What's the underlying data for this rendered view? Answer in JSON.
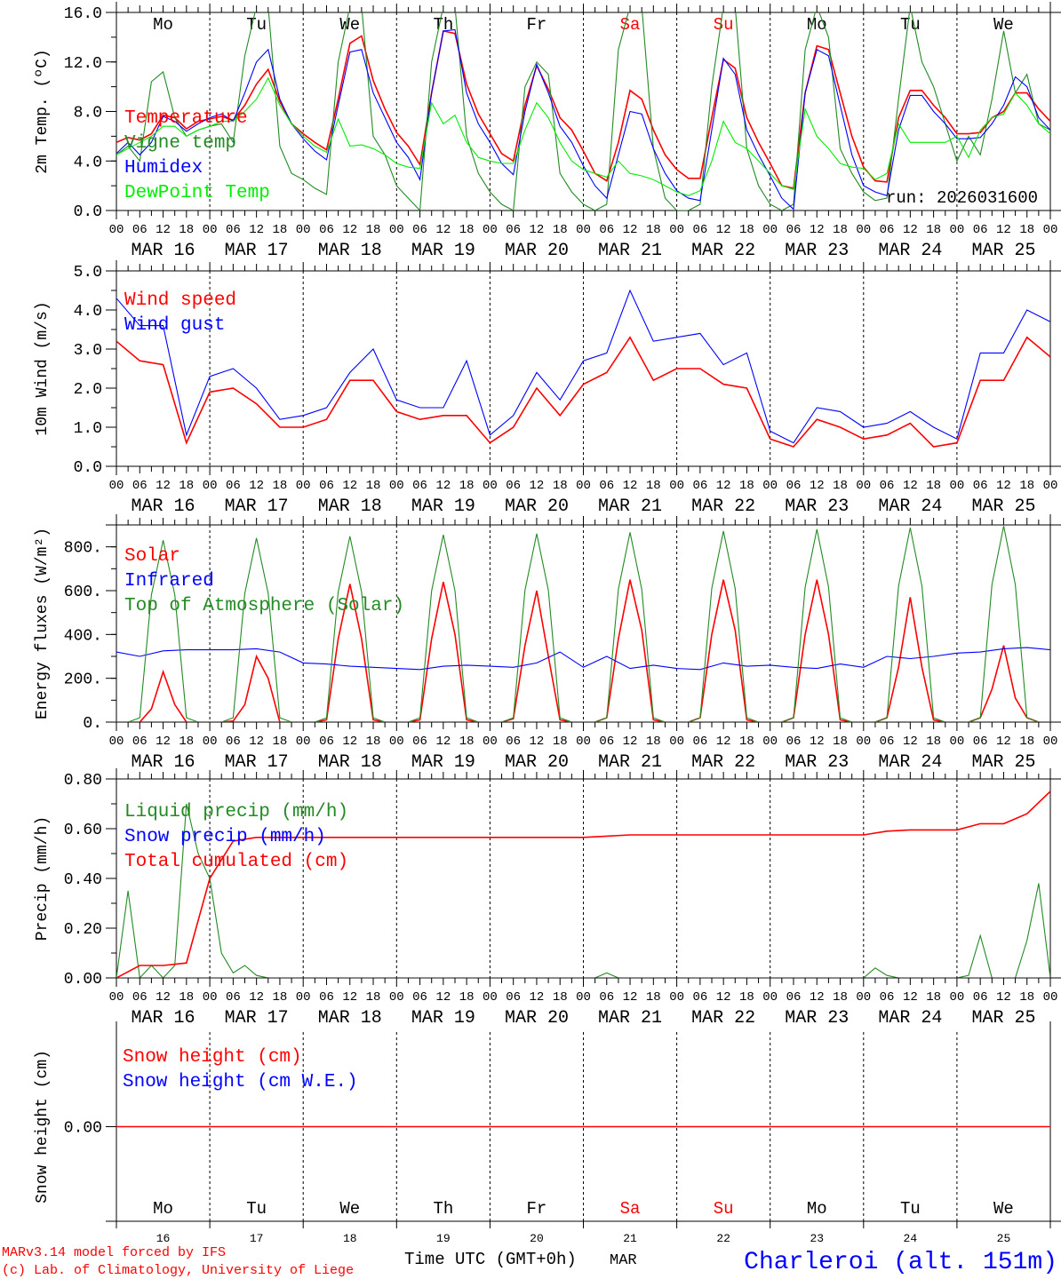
{
  "chart_data": [
    {
      "type": "line",
      "ylabel": "2m Temp. (ºC)",
      "ylim": [
        0,
        16
      ],
      "yticks": [
        0,
        4,
        8,
        12,
        16
      ],
      "ytick_labels": [
        "0.0",
        "4.0",
        "8.0",
        "12.0",
        "16.0"
      ],
      "legend_placement": "left",
      "annotation": "run: 2026031600",
      "series": [
        {
          "name": "Temperature",
          "color": "#ff0000",
          "step_hours": 3,
          "values": [
            5.5,
            5.9,
            5.7,
            6.2,
            7.7,
            7.5,
            6.6,
            7.2,
            7.4,
            7.6,
            7.3,
            8.5,
            10.2,
            11.4,
            8.8,
            7.0,
            6.2,
            5.5,
            4.9,
            9.0,
            13.5,
            14.1,
            10.5,
            8.2,
            6.3,
            5.2,
            3.7,
            9.5,
            14.5,
            14.3,
            10.2,
            7.8,
            6.2,
            4.6,
            4.0,
            8.5,
            11.7,
            9.8,
            7.5,
            6.5,
            4.8,
            3.0,
            2.4,
            5.5,
            9.7,
            9.0,
            6.5,
            4.5,
            3.3,
            2.6,
            2.6,
            7.5,
            12.2,
            11.5,
            7.5,
            5.5,
            3.8,
            2.0,
            1.8,
            9.5,
            13.3,
            13.0,
            9.5,
            6.0,
            3.5,
            2.4,
            2.3,
            7.5,
            9.7,
            9.7,
            8.5,
            7.5,
            6.2,
            6.2,
            6.3,
            7.5,
            8.0,
            9.5,
            9.5,
            8.2,
            7.2
          ]
        },
        {
          "name": "Vigne temp",
          "color": "#228b22",
          "step_hours": 3,
          "values": [
            4.5,
            5.2,
            4.0,
            10.4,
            11.2,
            7.5,
            6.0,
            6.5,
            6.8,
            7.0,
            5.5,
            12.5,
            16.5,
            16.5,
            5.2,
            3.0,
            2.5,
            1.8,
            1.3,
            12,
            16.5,
            16.5,
            6,
            4.5,
            2.0,
            1.0,
            0.0,
            12,
            16.5,
            16.5,
            6,
            3.0,
            1.5,
            0.5,
            0.0,
            10,
            12,
            11,
            3,
            1.5,
            0.5,
            0,
            0.5,
            13,
            16.5,
            16.5,
            5,
            1.0,
            0,
            0,
            0.5,
            10,
            16.5,
            16.5,
            5,
            2.0,
            0.5,
            0,
            0.5,
            13,
            16.5,
            14,
            5,
            3.0,
            1.5,
            0.8,
            1.0,
            9,
            16.5,
            12,
            10,
            7.0,
            4.0,
            6.0,
            4.5,
            9,
            14.5,
            9.5,
            11,
            7.0,
            6.5
          ]
        },
        {
          "name": "Humidex",
          "color": "#0000ff",
          "step_hours": 3,
          "values": [
            4.6,
            5.5,
            4.5,
            5.5,
            7.6,
            7.2,
            6.4,
            7.0,
            7.5,
            7.8,
            7.2,
            9.5,
            12.0,
            13.0,
            9.0,
            7.0,
            5.8,
            4.8,
            4.1,
            8.5,
            12.8,
            13.0,
            9.5,
            7.5,
            5.5,
            4.3,
            2.5,
            9.5,
            14.5,
            14.6,
            9.5,
            7.0,
            5.5,
            3.8,
            2.9,
            8.0,
            11.8,
            9.5,
            6.8,
            5.5,
            3.6,
            2.0,
            1.0,
            4.5,
            8.0,
            7.8,
            5.0,
            3.0,
            1.6,
            1.0,
            0.8,
            6.5,
            12.3,
            11.0,
            6.5,
            4.5,
            2.8,
            1.0,
            0.1,
            9.5,
            13.0,
            12.5,
            8.5,
            4.5,
            2.0,
            1.5,
            1.2,
            6.5,
            9.3,
            9.3,
            8.0,
            7.0,
            5.8,
            5.8,
            5.9,
            7.0,
            8.5,
            10.8,
            10.0,
            7.5,
            6.5
          ]
        },
        {
          "name": "DewPoint Temp",
          "color": "#00ee00",
          "step_hours": 3,
          "values": [
            4.5,
            5.0,
            5.5,
            6.0,
            6.8,
            6.8,
            6.0,
            6.5,
            6.8,
            7.2,
            7.2,
            8.0,
            9.0,
            10.7,
            8.5,
            7.0,
            6.0,
            5.2,
            4.7,
            7.4,
            5.2,
            5.3,
            5.0,
            4.5,
            3.8,
            3.5,
            3.4,
            8.7,
            7.0,
            7.7,
            5.5,
            4.3,
            4.0,
            3.8,
            3.8,
            6.5,
            8.7,
            7.5,
            5.5,
            4.0,
            3.3,
            3.0,
            2.7,
            4.0,
            3.0,
            2.8,
            2.5,
            2.0,
            1.5,
            1.2,
            1.6,
            4.0,
            7.2,
            5.5,
            5.0,
            4.0,
            3.0,
            2.0,
            1.7,
            8.2,
            6.0,
            5.0,
            3.8,
            3.5,
            3.4,
            2.5,
            3.0,
            7.0,
            5.5,
            5.5,
            5.5,
            5.5,
            6.0,
            4.3,
            6.5,
            7.5,
            7.8,
            9.5,
            8.5,
            7.0,
            6.2
          ]
        }
      ]
    },
    {
      "type": "line",
      "ylabel": "10m Wind (m/s)",
      "ylim": [
        0,
        5
      ],
      "yticks": [
        0,
        1,
        2,
        3,
        4,
        5
      ],
      "ytick_labels": [
        "0.0",
        "1.0",
        "2.0",
        "3.0",
        "4.0",
        "5.0"
      ],
      "legend_placement": "top-left",
      "series": [
        {
          "name": "Wind speed",
          "color": "#ff0000",
          "step_hours": 6,
          "values": [
            3.2,
            2.7,
            2.6,
            0.6,
            1.9,
            2.0,
            1.6,
            1.0,
            1.0,
            1.2,
            2.2,
            2.2,
            1.4,
            1.2,
            1.3,
            1.3,
            0.6,
            1.0,
            2.0,
            1.3,
            2.1,
            2.4,
            3.3,
            2.2,
            2.5,
            2.5,
            2.1,
            2.0,
            0.7,
            0.5,
            1.2,
            1.0,
            0.7,
            0.8,
            1.1,
            0.5,
            0.6,
            2.2,
            2.2,
            3.3,
            2.8
          ]
        },
        {
          "name": "Wind gust",
          "color": "#0000ff",
          "step_hours": 6,
          "values": [
            4.3,
            3.6,
            3.6,
            0.8,
            2.3,
            2.5,
            2.0,
            1.2,
            1.3,
            1.5,
            2.4,
            3.0,
            1.7,
            1.5,
            1.5,
            2.7,
            0.8,
            1.3,
            2.4,
            1.7,
            2.7,
            2.9,
            4.5,
            3.2,
            3.3,
            3.4,
            2.6,
            2.9,
            0.9,
            0.6,
            1.5,
            1.4,
            1.0,
            1.1,
            1.4,
            1.0,
            0.7,
            2.9,
            2.9,
            4.0,
            3.7
          ]
        }
      ]
    },
    {
      "type": "line",
      "ylabel": "Energy fluxes (W/m²)",
      "ylim": [
        0,
        900
      ],
      "yticks": [
        0,
        200,
        400,
        600,
        800
      ],
      "ytick_labels": [
        "0.",
        "200.",
        "400.",
        "600.",
        "800."
      ],
      "legend_placement": "top-left",
      "series": [
        {
          "name": "Solar",
          "color": "#ff0000",
          "step_hours": 3,
          "values": [
            0,
            0,
            0,
            60,
            230,
            80,
            0,
            0,
            0,
            0,
            5,
            80,
            300,
            200,
            0,
            0,
            0,
            0,
            10,
            380,
            630,
            380,
            10,
            0,
            0,
            0,
            10,
            380,
            640,
            400,
            10,
            0,
            0,
            0,
            15,
            350,
            600,
            300,
            10,
            0,
            0,
            0,
            20,
            380,
            650,
            420,
            10,
            0,
            0,
            0,
            20,
            400,
            650,
            420,
            10,
            0,
            0,
            0,
            20,
            400,
            650,
            400,
            10,
            0,
            0,
            0,
            20,
            250,
            570,
            250,
            10,
            0,
            0,
            0,
            20,
            150,
            350,
            110,
            20,
            0,
            0
          ]
        },
        {
          "name": "Infrared",
          "color": "#0000ff",
          "step_hours": 6,
          "values": [
            320,
            300,
            325,
            330,
            330,
            330,
            335,
            320,
            270,
            265,
            255,
            250,
            245,
            240,
            255,
            260,
            255,
            250,
            270,
            320,
            250,
            300,
            245,
            260,
            245,
            240,
            270,
            255,
            260,
            250,
            245,
            265,
            250,
            300,
            290,
            300,
            315,
            320,
            335,
            340,
            330
          ]
        },
        {
          "name": "Top of Atmosphere (Solar)",
          "color": "#228b22",
          "step_hours": 3,
          "values": [
            0,
            0,
            20,
            581,
            830,
            581,
            20,
            0,
            0,
            0,
            20,
            588,
            840,
            588,
            20,
            0,
            0,
            0,
            20,
            594,
            848,
            594,
            20,
            0,
            0,
            0,
            20,
            599,
            855,
            599,
            20,
            0,
            0,
            0,
            20,
            602,
            860,
            602,
            20,
            0,
            0,
            0,
            20,
            606,
            866,
            606,
            20,
            0,
            0,
            0,
            20,
            610,
            872,
            610,
            20,
            0,
            0,
            0,
            20,
            616,
            880,
            616,
            20,
            0,
            0,
            0,
            20,
            621,
            887,
            621,
            20,
            0,
            0,
            0,
            20,
            627,
            895,
            627,
            20,
            0,
            0
          ]
        }
      ]
    },
    {
      "type": "line",
      "ylabel": "Precip (mm/h)",
      "ylim": [
        0,
        0.8
      ],
      "yticks": [
        0,
        0.2,
        0.4,
        0.6,
        0.8
      ],
      "ytick_labels": [
        "0.00",
        "0.20",
        "0.40",
        "0.60",
        "0.80"
      ],
      "legend_placement": "top-left",
      "series": [
        {
          "name": "Liquid precip (mm/h)",
          "color": "#228b22",
          "step_hours": 3,
          "values": [
            0,
            0.35,
            0,
            0.05,
            0,
            0.05,
            0.7,
            0.5,
            0.4,
            0.1,
            0.02,
            0.05,
            0.01,
            0,
            0,
            0,
            0,
            0,
            0,
            0,
            0,
            0,
            0,
            0,
            0,
            0,
            0,
            0,
            0,
            0,
            0,
            0,
            0,
            0,
            0,
            0,
            0,
            0,
            0,
            0,
            0,
            0,
            0.02,
            0,
            0,
            0,
            0,
            0,
            0,
            0,
            0,
            0,
            0,
            0,
            0,
            0,
            0,
            0,
            0,
            0,
            0,
            0,
            0,
            0,
            0,
            0.04,
            0.01,
            0,
            0,
            0,
            0,
            0,
            0,
            0.01,
            0.17,
            0,
            0,
            0,
            0.15,
            0.38,
            0
          ]
        },
        {
          "name": "Snow precip (mm/h)",
          "color": "#0000ff",
          "step_hours": 240,
          "values": [
            0,
            0
          ]
        },
        {
          "name": "Total cumulated (cm)",
          "color": "#ff0000",
          "step_hours": 6,
          "values": [
            0,
            0.05,
            0.05,
            0.06,
            0.4,
            0.55,
            0.565,
            0.565,
            0.565,
            0.565,
            0.565,
            0.565,
            0.565,
            0.565,
            0.565,
            0.565,
            0.565,
            0.565,
            0.565,
            0.565,
            0.565,
            0.57,
            0.575,
            0.575,
            0.575,
            0.575,
            0.575,
            0.575,
            0.575,
            0.575,
            0.575,
            0.575,
            0.575,
            0.59,
            0.595,
            0.595,
            0.595,
            0.62,
            0.62,
            0.66,
            0.75
          ]
        }
      ]
    },
    {
      "type": "line",
      "ylabel": "Snow height (cm)",
      "ylim": [
        -1,
        1
      ],
      "yticks": [
        0
      ],
      "ytick_labels": [
        "0.00"
      ],
      "legend_placement": "top-left",
      "series": [
        {
          "name": "Snow height (cm W.E.)",
          "color": "#0000ff",
          "step_hours": 240,
          "values": [
            0,
            0
          ]
        },
        {
          "name": "Snow height (cm)",
          "color": "#ff0000",
          "step_hours": 240,
          "values": [
            0,
            0
          ]
        }
      ],
      "legend_order": [
        "Snow height (cm)",
        "Snow height (cm W.E.)"
      ]
    }
  ],
  "x_axis": {
    "hour_labels": [
      "00",
      "06",
      "12",
      "18"
    ],
    "end_label": "00",
    "dates": [
      "MAR 16",
      "MAR 17",
      "MAR 18",
      "MAR 19",
      "MAR 20",
      "MAR 21",
      "MAR 22",
      "MAR 23",
      "MAR 24",
      "MAR 25"
    ],
    "day_numbers": [
      "16",
      "17",
      "18",
      "19",
      "20",
      "21",
      "22",
      "23",
      "24",
      "25"
    ],
    "weekdays": [
      {
        "label": "Mo",
        "color": "#000000"
      },
      {
        "label": "Tu",
        "color": "#000000"
      },
      {
        "label": "We",
        "color": "#000000"
      },
      {
        "label": "Th",
        "color": "#000000"
      },
      {
        "label": "Fr",
        "color": "#000000"
      },
      {
        "label": "Sa",
        "color": "#ff0000"
      },
      {
        "label": "Su",
        "color": "#ff0000"
      },
      {
        "label": "Mo",
        "color": "#000000"
      },
      {
        "label": "Tu",
        "color": "#000000"
      },
      {
        "label": "We",
        "color": "#000000"
      }
    ],
    "title": "Time UTC (GMT+0h)",
    "month": "MAR"
  },
  "footer": {
    "credit_line1": "MARv3.14 model forced by IFS",
    "credit_line2": "(c) Lab. of Climatology, University of Liege",
    "station": "Charleroi (alt. 151m)",
    "credit_color": "#ff0000",
    "station_color": "#0000ff"
  }
}
